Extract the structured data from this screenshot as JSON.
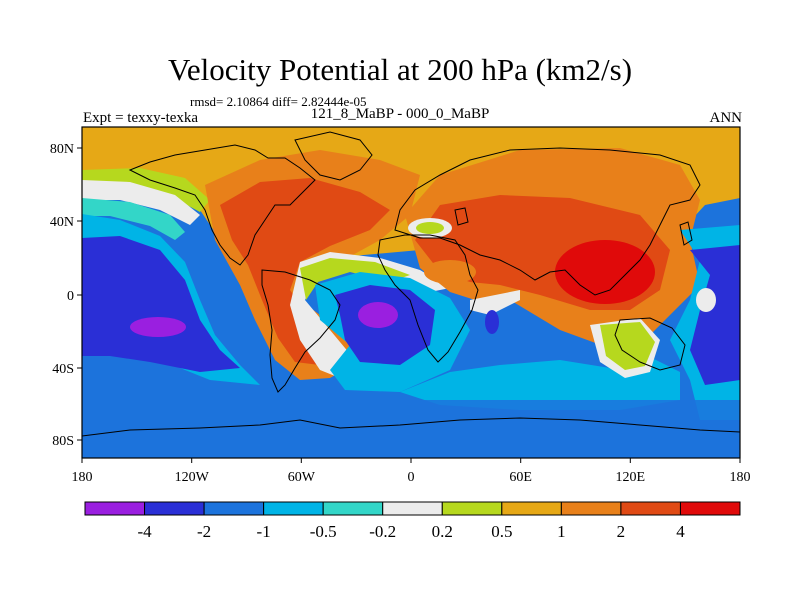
{
  "chart_data": {
    "type": "heatmap",
    "title": "Velocity Potential at 200 hPa (km2/s)",
    "stats_line": "rmsd= 2.10864 diff= 2.82444e-05",
    "left_label": "Expt = texxy-texka",
    "center_label": "121_8_MaBP - 000_0_MaBP",
    "right_label": "ANN",
    "x_ticks": [
      "180",
      "120W",
      "60W",
      "0",
      "60E",
      "120E",
      "180"
    ],
    "y_ticks": [
      "80N",
      "40N",
      "0",
      "40S",
      "80S"
    ],
    "xlim": [
      -180,
      180
    ],
    "ylim": [
      -90,
      90
    ],
    "contour_levels": [
      "-4",
      "-2",
      "-1",
      "-0.5",
      "-0.2",
      "0.2",
      "0.5",
      "1",
      "2",
      "4"
    ],
    "colorbar_colors": [
      "#9a1fe0",
      "#2a2fd6",
      "#1c73dc",
      "#00b4e6",
      "#33d6c8",
      "#ececec",
      "#b6d81e",
      "#e6a816",
      "#e8801a",
      "#e04a14",
      "#e00a0a"
    ]
  }
}
